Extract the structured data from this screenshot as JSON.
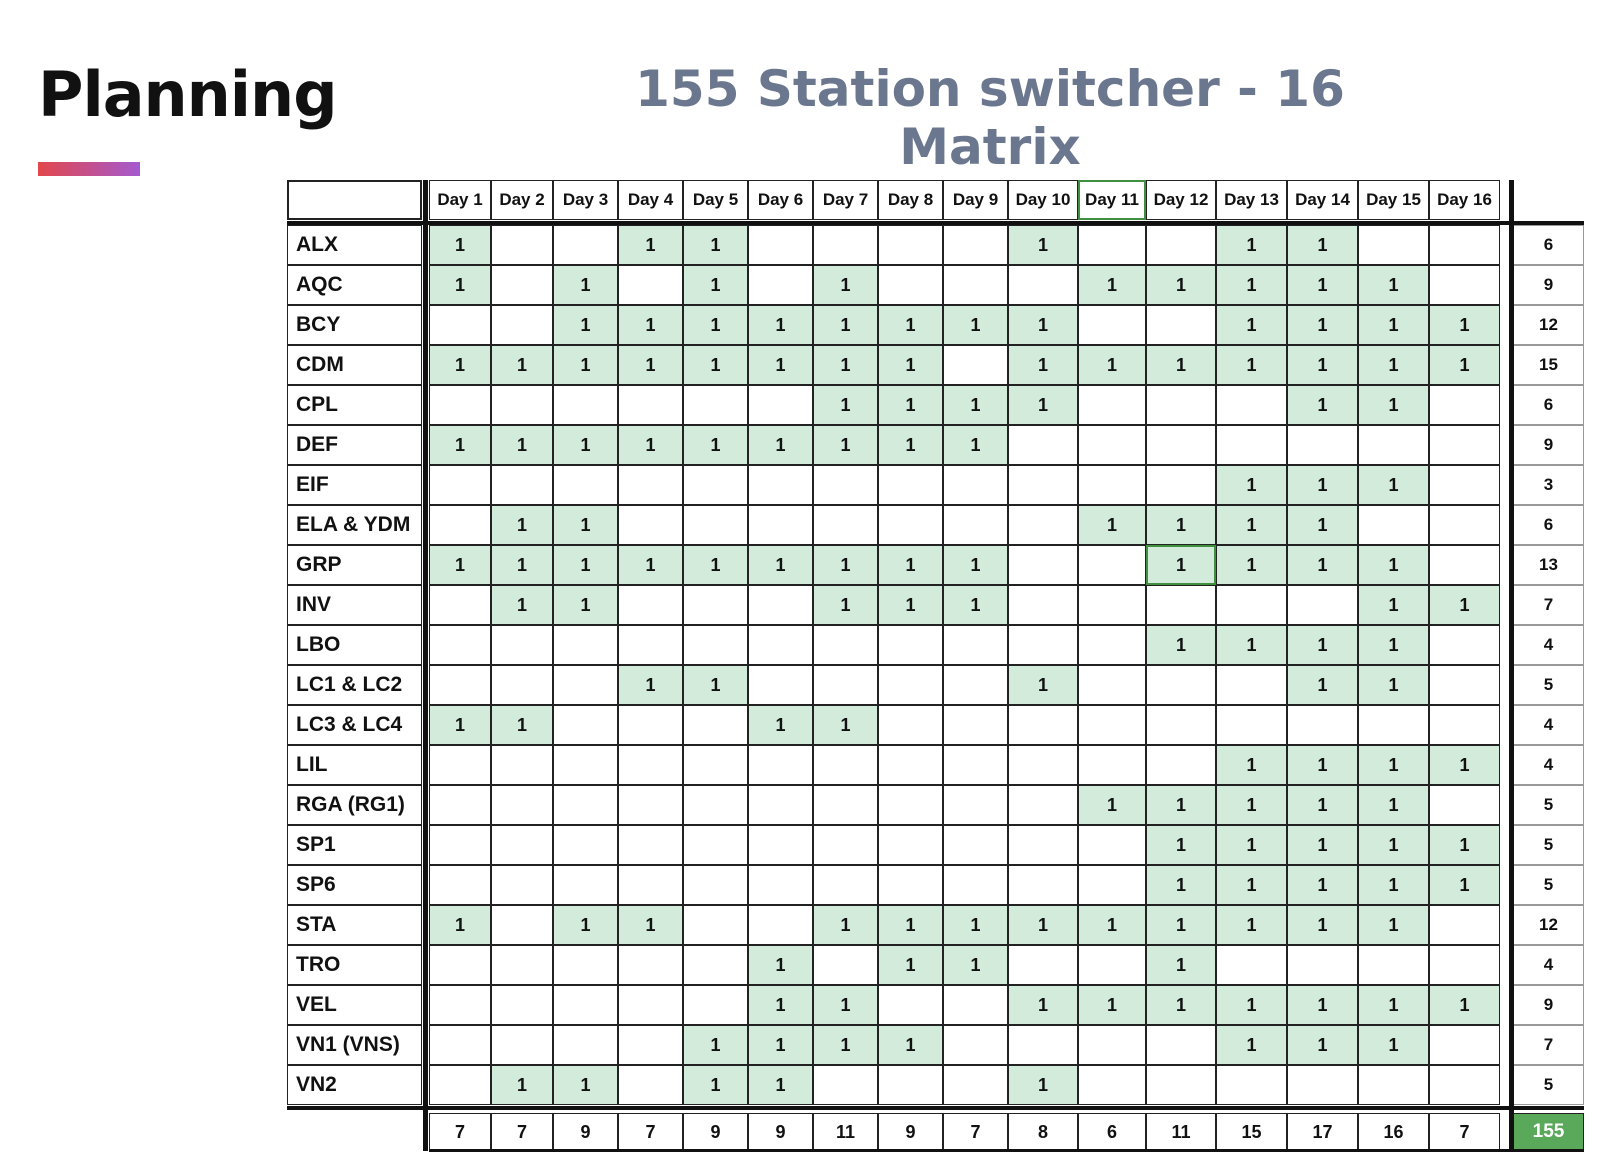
{
  "slide": {
    "title": "Planning",
    "matrix_title": "155 Station switcher - 16 Matrix",
    "accent_gradient": [
      "#e2474b",
      "#a45ad0"
    ],
    "footnote": ""
  },
  "colors": {
    "filled_cell": "#d3ebdb",
    "grand_total_bg": "#5aa85a",
    "highlight_border": "#3f8f3f",
    "title_color": "#6b778e"
  },
  "table": {
    "days": [
      "Day 1",
      "Day 2",
      "Day 3",
      "Day 4",
      "Day 5",
      "Day 6",
      "Day 7",
      "Day 8",
      "Day 9",
      "Day 10",
      "Day 11",
      "Day 12",
      "Day 13",
      "Day 14",
      "Day 15",
      "Day 16"
    ],
    "highlighted_header_day": "Day 11",
    "highlighted_cell": {
      "station": "GRP",
      "day": "Day 12"
    },
    "rows": [
      {
        "station": "ALX",
        "marks": [
          1,
          0,
          0,
          1,
          1,
          0,
          0,
          0,
          0,
          1,
          0,
          0,
          1,
          1,
          0,
          0
        ],
        "total": "6"
      },
      {
        "station": "AQC",
        "marks": [
          1,
          0,
          1,
          0,
          1,
          0,
          1,
          0,
          0,
          0,
          1,
          1,
          1,
          1,
          1,
          0
        ],
        "total": "9"
      },
      {
        "station": "BCY",
        "marks": [
          0,
          0,
          1,
          1,
          1,
          1,
          1,
          1,
          1,
          1,
          0,
          0,
          1,
          1,
          1,
          1
        ],
        "total": "12"
      },
      {
        "station": "CDM",
        "marks": [
          1,
          1,
          1,
          1,
          1,
          1,
          1,
          1,
          0,
          1,
          1,
          1,
          1,
          1,
          1,
          1
        ],
        "total": "15"
      },
      {
        "station": "CPL",
        "marks": [
          0,
          0,
          0,
          0,
          0,
          0,
          1,
          1,
          1,
          1,
          0,
          0,
          0,
          1,
          1,
          0
        ],
        "total": "6"
      },
      {
        "station": "DEF",
        "marks": [
          1,
          1,
          1,
          1,
          1,
          1,
          1,
          1,
          1,
          0,
          0,
          0,
          0,
          0,
          0,
          0
        ],
        "total": "9"
      },
      {
        "station": "EIF",
        "marks": [
          0,
          0,
          0,
          0,
          0,
          0,
          0,
          0,
          0,
          0,
          0,
          0,
          1,
          1,
          1,
          0
        ],
        "total": "3"
      },
      {
        "station": "ELA & YDM",
        "marks": [
          0,
          1,
          1,
          0,
          0,
          0,
          0,
          0,
          0,
          0,
          1,
          1,
          1,
          1,
          0,
          0
        ],
        "total": "6"
      },
      {
        "station": "GRP",
        "marks": [
          1,
          1,
          1,
          1,
          1,
          1,
          1,
          1,
          1,
          0,
          0,
          1,
          1,
          1,
          1,
          0
        ],
        "total": "13"
      },
      {
        "station": "INV",
        "marks": [
          0,
          1,
          1,
          0,
          0,
          0,
          1,
          1,
          1,
          0,
          0,
          0,
          0,
          0,
          1,
          1
        ],
        "total": "7"
      },
      {
        "station": "LBO",
        "marks": [
          0,
          0,
          0,
          0,
          0,
          0,
          0,
          0,
          0,
          0,
          0,
          1,
          1,
          1,
          1,
          0
        ],
        "total": "4"
      },
      {
        "station": "LC1 & LC2",
        "marks": [
          0,
          0,
          0,
          1,
          1,
          0,
          0,
          0,
          0,
          1,
          0,
          0,
          0,
          1,
          1,
          0
        ],
        "total": "5"
      },
      {
        "station": "LC3 & LC4",
        "marks": [
          1,
          1,
          0,
          0,
          0,
          1,
          1,
          0,
          0,
          0,
          0,
          0,
          0,
          0,
          0,
          0
        ],
        "total": "4"
      },
      {
        "station": "LIL",
        "marks": [
          0,
          0,
          0,
          0,
          0,
          0,
          0,
          0,
          0,
          0,
          0,
          0,
          1,
          1,
          1,
          1
        ],
        "total": "4"
      },
      {
        "station": "RGA (RG1)",
        "marks": [
          0,
          0,
          0,
          0,
          0,
          0,
          0,
          0,
          0,
          0,
          1,
          1,
          1,
          1,
          1,
          0
        ],
        "total": "5"
      },
      {
        "station": "SP1",
        "marks": [
          0,
          0,
          0,
          0,
          0,
          0,
          0,
          0,
          0,
          0,
          0,
          1,
          1,
          1,
          1,
          1
        ],
        "total": "5"
      },
      {
        "station": "SP6",
        "marks": [
          0,
          0,
          0,
          0,
          0,
          0,
          0,
          0,
          0,
          0,
          0,
          1,
          1,
          1,
          1,
          1
        ],
        "total": "5"
      },
      {
        "station": "STA",
        "marks": [
          1,
          0,
          1,
          1,
          0,
          0,
          1,
          1,
          1,
          1,
          1,
          1,
          1,
          1,
          1,
          0
        ],
        "total": "12"
      },
      {
        "station": "TRO",
        "marks": [
          0,
          0,
          0,
          0,
          0,
          1,
          0,
          1,
          1,
          0,
          0,
          1,
          0,
          0,
          0,
          0
        ],
        "total": "4"
      },
      {
        "station": "VEL",
        "marks": [
          0,
          0,
          0,
          0,
          0,
          1,
          1,
          0,
          0,
          1,
          1,
          1,
          1,
          1,
          1,
          1
        ],
        "total": "9"
      },
      {
        "station": "VN1 (VNS)",
        "marks": [
          0,
          0,
          0,
          0,
          1,
          1,
          1,
          1,
          0,
          0,
          0,
          0,
          1,
          1,
          1,
          0
        ],
        "total": "7"
      },
      {
        "station": "VN2",
        "marks": [
          0,
          1,
          1,
          0,
          1,
          1,
          0,
          0,
          0,
          1,
          0,
          0,
          0,
          0,
          0,
          0
        ],
        "total": "5"
      }
    ],
    "column_totals": [
      "7",
      "7",
      "9",
      "7",
      "9",
      "9",
      "11",
      "9",
      "7",
      "8",
      "6",
      "11",
      "15",
      "17",
      "16",
      "7"
    ],
    "grand_total": "155"
  }
}
